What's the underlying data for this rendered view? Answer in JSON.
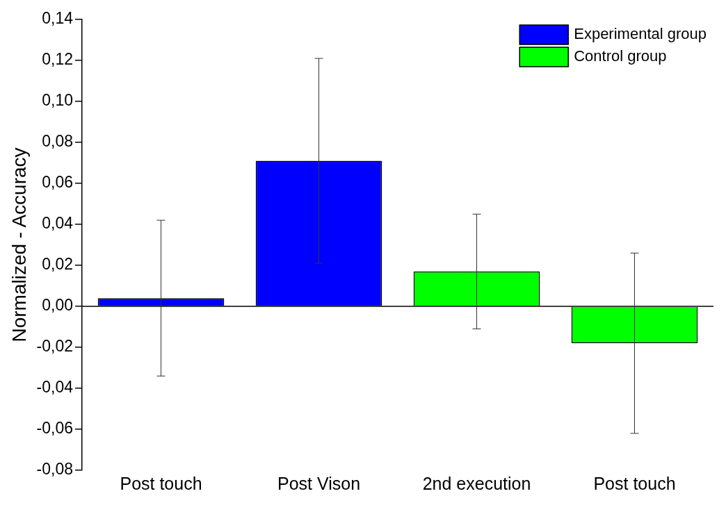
{
  "chart_data": {
    "type": "bar",
    "ylabel": "Normalized - Accuracy",
    "categories": [
      "Post touch",
      "Post Vison",
      "2nd execution",
      "Post touch"
    ],
    "series": [
      {
        "name": "Experimental group",
        "color": "#0000ff",
        "values": [
          0.004,
          0.071,
          null,
          null
        ],
        "errors": [
          0.038,
          0.05,
          null,
          null
        ]
      },
      {
        "name": "Control group",
        "color": "#00ff00",
        "values": [
          null,
          null,
          0.017,
          -0.018
        ],
        "errors": [
          null,
          null,
          0.028,
          0.044
        ]
      }
    ],
    "ylim": [
      -0.08,
      0.14
    ],
    "yticks": [
      {
        "value": -0.08,
        "label": "-0,08"
      },
      {
        "value": -0.06,
        "label": "-0,06"
      },
      {
        "value": -0.04,
        "label": "-0,04"
      },
      {
        "value": -0.02,
        "label": "-0,02"
      },
      {
        "value": 0,
        "label": "0,00"
      },
      {
        "value": 0.02,
        "label": "0,02"
      },
      {
        "value": 0.04,
        "label": "0,04"
      },
      {
        "value": 0.06,
        "label": "0,06"
      },
      {
        "value": 0.08,
        "label": "0,08"
      },
      {
        "value": 0.1,
        "label": "0,10"
      },
      {
        "value": 0.12,
        "label": "0,12"
      },
      {
        "value": 0.14,
        "label": "0,14"
      }
    ],
    "ref_lines": [
      {
        "axis": "y",
        "value": 0,
        "color": "#000000"
      }
    ],
    "legend": "top right",
    "grid": false
  }
}
